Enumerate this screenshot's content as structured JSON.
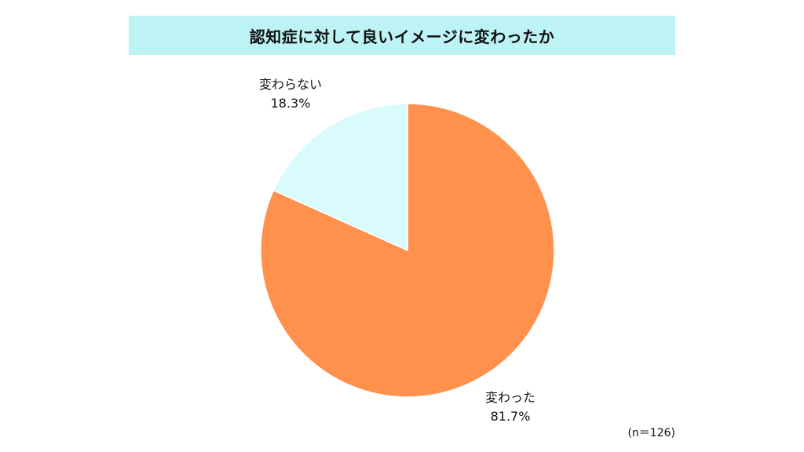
{
  "chart_data": {
    "type": "pie",
    "title": "認知症に対して良いイメージに変わったか",
    "slices": [
      {
        "label": "変わった",
        "value": 81.7,
        "value_label": "81.7%",
        "color": "#ff914d"
      },
      {
        "label": "変わらない",
        "value": 18.3,
        "value_label": "18.3%",
        "color": "#d9fbfd"
      }
    ],
    "start_angle_deg": 0,
    "direction": "clockwise",
    "legend": "none",
    "note": "(n＝126)"
  }
}
